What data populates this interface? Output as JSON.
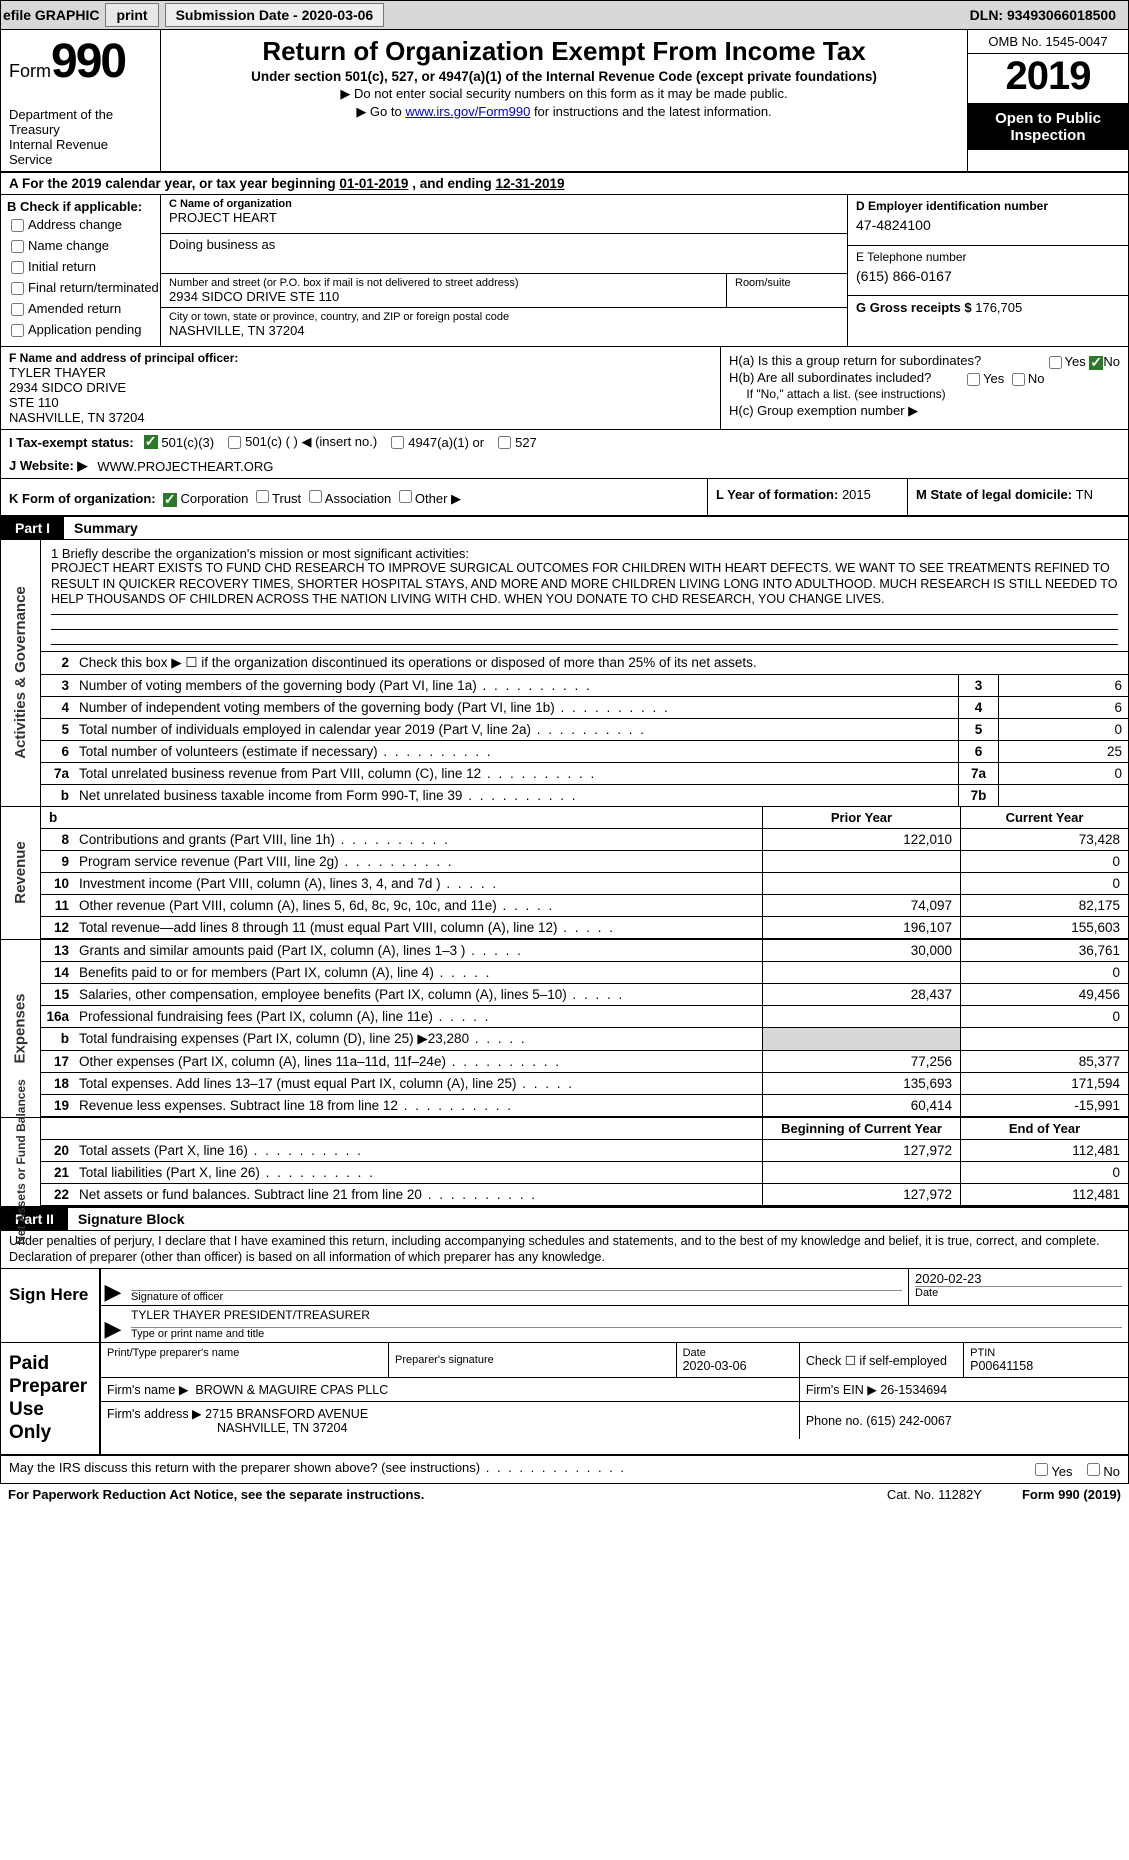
{
  "topbar": {
    "efile": "efile GRAPHIC",
    "print": "print",
    "submission_label": "Submission Date - ",
    "submission_date": "2020-03-06",
    "dln_label": "DLN: ",
    "dln": "93493066018500"
  },
  "header": {
    "form_label": "Form",
    "form_number": "990",
    "dept": "Department of the Treasury",
    "irs": "Internal Revenue Service",
    "title": "Return of Organization Exempt From Income Tax",
    "subtitle": "Under section 501(c), 527, or 4947(a)(1) of the Internal Revenue Code (except private foundations)",
    "note1": "▶ Do not enter social security numbers on this form as it may be made public.",
    "note2_pre": "▶ Go to ",
    "note2_link": "www.irs.gov/Form990",
    "note2_post": " for instructions and the latest information.",
    "omb": "OMB No. 1545-0047",
    "year": "2019",
    "open": "Open to Public Inspection"
  },
  "line_a": {
    "text_pre": "A   For the 2019 calendar year, or tax year beginning ",
    "begin": "01-01-2019",
    "mid": "  , and ending ",
    "end": "12-31-2019"
  },
  "section_b": {
    "label": "B Check if applicable:",
    "opts": [
      "Address change",
      "Name change",
      "Initial return",
      "Final return/terminated",
      "Amended return",
      "Application pending"
    ]
  },
  "section_c": {
    "name_label": "C Name of organization",
    "name": "PROJECT HEART",
    "dba_label": "Doing business as",
    "dba": "",
    "addr_label": "Number and street (or P.O. box if mail is not delivered to street address)",
    "room_label": "Room/suite",
    "addr": "2934 SIDCO DRIVE STE 110",
    "city_label": "City or town, state or province, country, and ZIP or foreign postal code",
    "city": "NASHVILLE, TN  37204"
  },
  "section_d": {
    "label": "D Employer identification number",
    "value": "47-4824100"
  },
  "section_e": {
    "label": "E Telephone number",
    "value": "(615) 866-0167"
  },
  "section_g": {
    "label": "G Gross receipts $ ",
    "value": "176,705"
  },
  "section_f": {
    "label": "F  Name and address of principal officer:",
    "name": "TYLER THAYER",
    "addr1": "2934 SIDCO DRIVE",
    "addr2": "STE 110",
    "city": "NASHVILLE, TN  37204"
  },
  "section_h": {
    "a": "H(a)  Is this a group return for subordinates?",
    "b": "H(b)  Are all subordinates included?",
    "b_note": "If \"No,\" attach a list. (see instructions)",
    "c": "H(c)  Group exemption number ▶",
    "yes": "Yes",
    "no": "No"
  },
  "section_i": {
    "label": "I    Tax-exempt status:",
    "o1": "501(c)(3)",
    "o2": "501(c) (   ) ◀ (insert no.)",
    "o3": "4947(a)(1) or",
    "o4": "527"
  },
  "section_j": {
    "label": "J   Website: ▶",
    "value": "WWW.PROJECTHEART.ORG"
  },
  "section_k": {
    "label": "K Form of organization:",
    "o1": "Corporation",
    "o2": "Trust",
    "o3": "Association",
    "o4": "Other ▶"
  },
  "section_l": {
    "label": "L Year of formation: ",
    "value": "2015"
  },
  "section_m": {
    "label": "M State of legal domicile: ",
    "value": "TN"
  },
  "part1": {
    "tag": "Part I",
    "title": "Summary"
  },
  "gov": {
    "side": "Activities & Governance",
    "mission_label": "1   Briefly describe the organization's mission or most significant activities:",
    "mission": "PROJECT HEART EXISTS TO FUND CHD RESEARCH TO IMPROVE SURGICAL OUTCOMES FOR CHILDREN WITH HEART DEFECTS. WE WANT TO SEE TREATMENTS REFINED TO RESULT IN QUICKER RECOVERY TIMES, SHORTER HOSPITAL STAYS, AND MORE AND MORE CHILDREN LIVING LONG INTO ADULTHOOD. MUCH RESEARCH IS STILL NEEDED TO HELP THOUSANDS OF CHILDREN ACROSS THE NATION LIVING WITH CHD. WHEN YOU DONATE TO CHD RESEARCH, YOU CHANGE LIVES.",
    "l2": "Check this box ▶ ☐  if the organization discontinued its operations or disposed of more than 25% of its net assets.",
    "rows": [
      {
        "n": "3",
        "d": "Number of voting members of the governing body (Part VI, line 1a)",
        "c": "3",
        "v": "6"
      },
      {
        "n": "4",
        "d": "Number of independent voting members of the governing body (Part VI, line 1b)",
        "c": "4",
        "v": "6"
      },
      {
        "n": "5",
        "d": "Total number of individuals employed in calendar year 2019 (Part V, line 2a)",
        "c": "5",
        "v": "0"
      },
      {
        "n": "6",
        "d": "Total number of volunteers (estimate if necessary)",
        "c": "6",
        "v": "25"
      },
      {
        "n": "7a",
        "d": "Total unrelated business revenue from Part VIII, column (C), line 12",
        "c": "7a",
        "v": "0"
      },
      {
        "n": "b",
        "d": "Net unrelated business taxable income from Form 990-T, line 39",
        "c": "7b",
        "v": ""
      }
    ]
  },
  "revenue": {
    "side": "Revenue",
    "h1": "Prior Year",
    "h2": "Current Year",
    "rows": [
      {
        "n": "8",
        "d": "Contributions and grants (Part VIII, line 1h)",
        "v1": "122,010",
        "v2": "73,428"
      },
      {
        "n": "9",
        "d": "Program service revenue (Part VIII, line 2g)",
        "v1": "",
        "v2": "0"
      },
      {
        "n": "10",
        "d": "Investment income (Part VIII, column (A), lines 3, 4, and 7d )",
        "v1": "",
        "v2": "0"
      },
      {
        "n": "11",
        "d": "Other revenue (Part VIII, column (A), lines 5, 6d, 8c, 9c, 10c, and 11e)",
        "v1": "74,097",
        "v2": "82,175"
      },
      {
        "n": "12",
        "d": "Total revenue—add lines 8 through 11 (must equal Part VIII, column (A), line 12)",
        "v1": "196,107",
        "v2": "155,603"
      }
    ]
  },
  "expenses": {
    "side": "Expenses",
    "rows": [
      {
        "n": "13",
        "d": "Grants and similar amounts paid (Part IX, column (A), lines 1–3 )",
        "v1": "30,000",
        "v2": "36,761"
      },
      {
        "n": "14",
        "d": "Benefits paid to or for members (Part IX, column (A), line 4)",
        "v1": "",
        "v2": "0"
      },
      {
        "n": "15",
        "d": "Salaries, other compensation, employee benefits (Part IX, column (A), lines 5–10)",
        "v1": "28,437",
        "v2": "49,456"
      },
      {
        "n": "16a",
        "d": "Professional fundraising fees (Part IX, column (A), line 11e)",
        "v1": "",
        "v2": "0",
        "shaded": false
      },
      {
        "n": "b",
        "d": "Total fundraising expenses (Part IX, column (D), line 25) ▶23,280",
        "v1": "",
        "v2": "",
        "shaded": true
      },
      {
        "n": "17",
        "d": "Other expenses (Part IX, column (A), lines 11a–11d, 11f–24e)",
        "v1": "77,256",
        "v2": "85,377"
      },
      {
        "n": "18",
        "d": "Total expenses. Add lines 13–17 (must equal Part IX, column (A), line 25)",
        "v1": "135,693",
        "v2": "171,594"
      },
      {
        "n": "19",
        "d": "Revenue less expenses. Subtract line 18 from line 12",
        "v1": "60,414",
        "v2": "-15,991"
      }
    ]
  },
  "netassets": {
    "side": "Net Assets or Fund Balances",
    "h1": "Beginning of Current Year",
    "h2": "End of Year",
    "rows": [
      {
        "n": "20",
        "d": "Total assets (Part X, line 16)",
        "v1": "127,972",
        "v2": "112,481"
      },
      {
        "n": "21",
        "d": "Total liabilities (Part X, line 26)",
        "v1": "",
        "v2": "0"
      },
      {
        "n": "22",
        "d": "Net assets or fund balances. Subtract line 21 from line 20",
        "v1": "127,972",
        "v2": "112,481"
      }
    ]
  },
  "part2": {
    "tag": "Part II",
    "title": "Signature Block"
  },
  "penalties": "Under penalties of perjury, I declare that I have examined this return, including accompanying schedules and statements, and to the best of my knowledge and belief, it is true, correct, and complete. Declaration of preparer (other than officer) is based on all information of which preparer has any knowledge.",
  "sign": {
    "left": "Sign Here",
    "sig_label": "Signature of officer",
    "date_label": "Date",
    "date": "2020-02-23",
    "name": "TYLER THAYER  PRESIDENT/TREASURER",
    "name_label": "Type or print name and title"
  },
  "paid": {
    "left": "Paid Preparer Use Only",
    "h_name": "Print/Type preparer's name",
    "h_sig": "Preparer's signature",
    "h_date": "Date",
    "date": "2020-03-06",
    "check_label": "Check ☐ if self-employed",
    "ptin_label": "PTIN",
    "ptin": "P00641158",
    "firm_label": "Firm's name    ▶",
    "firm": "BROWN & MAGUIRE CPAS PLLC",
    "firm_ein_label": "Firm's EIN ▶",
    "firm_ein": "26-1534694",
    "addr_label": "Firm's address ▶",
    "addr": "2715 BRANSFORD AVENUE",
    "addr2": "NASHVILLE, TN  37204",
    "phone_label": "Phone no. ",
    "phone": "(615) 242-0067"
  },
  "may_irs": {
    "q": "May the IRS discuss this return with the preparer shown above? (see instructions)",
    "yes": "Yes",
    "no": "No"
  },
  "footer": {
    "left": "For Paperwork Reduction Act Notice, see the separate instructions.",
    "center": "Cat. No. 11282Y",
    "right": "Form 990 (2019)"
  }
}
